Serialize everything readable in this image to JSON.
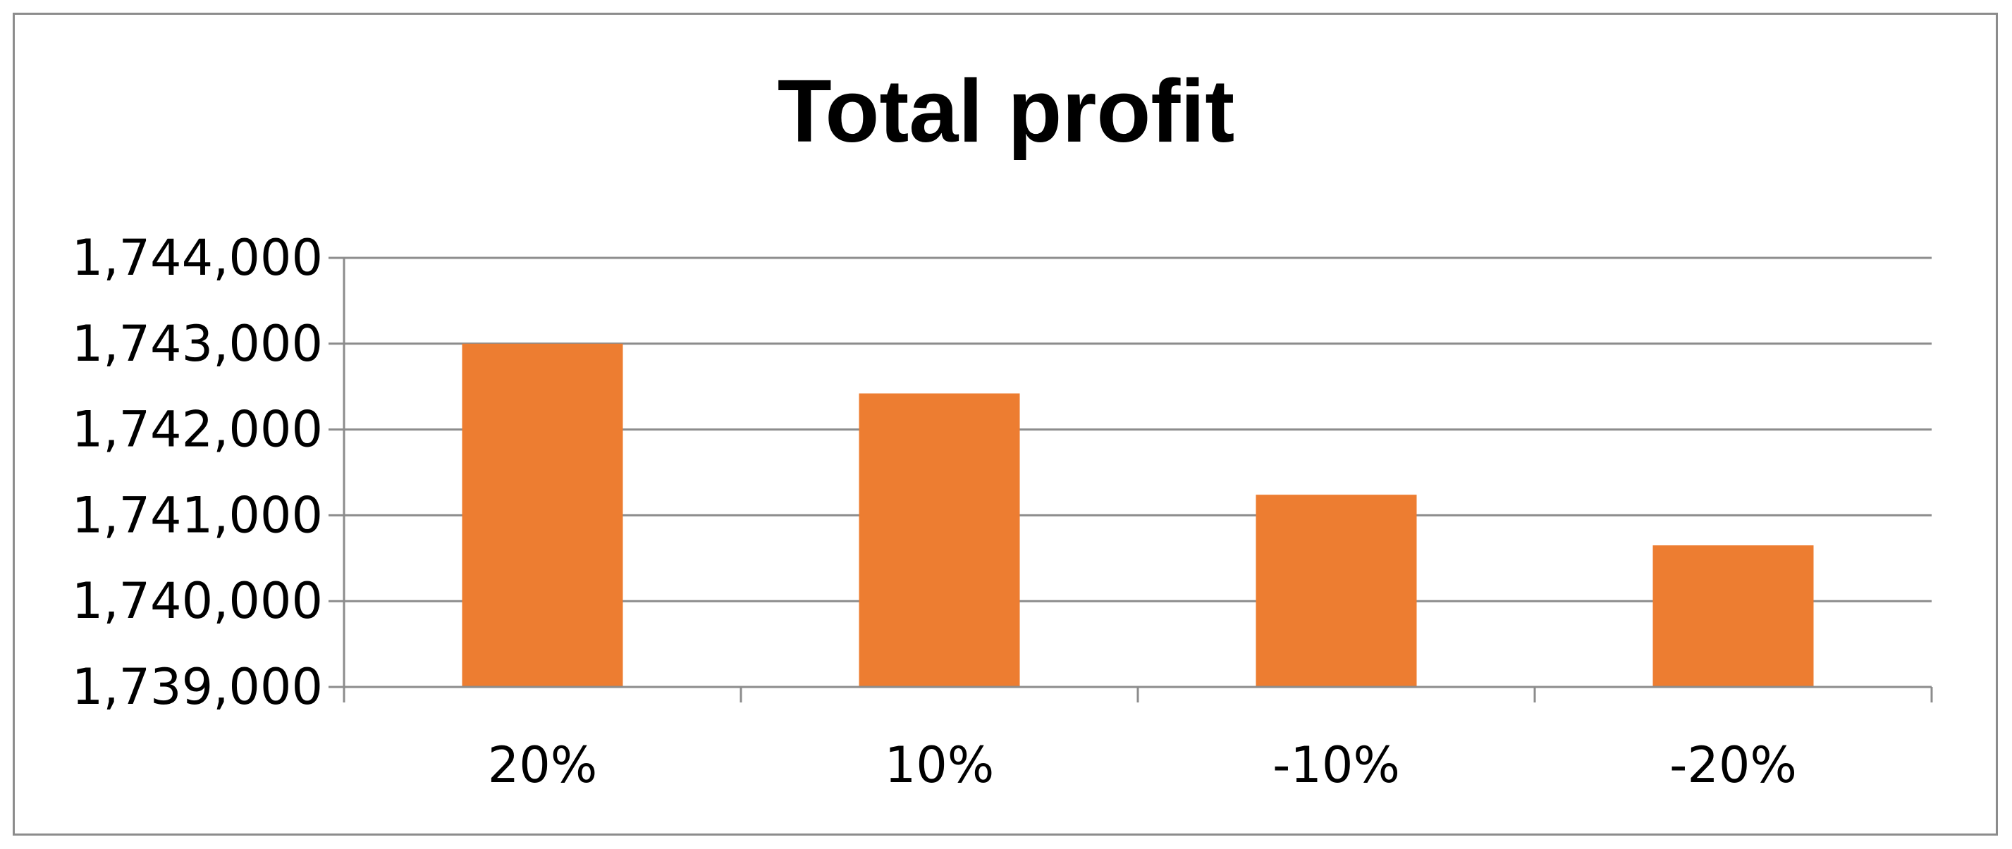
{
  "chart_data": {
    "type": "bar",
    "title": "Total profit",
    "categories": [
      "20%",
      "10%",
      "-10%",
      "-20%"
    ],
    "values": [
      1743000,
      1742420,
      1741240,
      1740650
    ],
    "ylim": [
      1739000,
      1744000
    ],
    "yticks": [
      1739000,
      1740000,
      1741000,
      1742000,
      1743000,
      1744000
    ],
    "ytick_labels": [
      "1,739,000",
      "1,740,000",
      "1,741,000",
      "1,742,000",
      "1,743,000",
      "1,744,000"
    ],
    "xlabel": "",
    "ylabel": "",
    "grid": true,
    "legend": "none",
    "colors": {
      "bar": "#ED7D31",
      "grid": "#8c8c8c",
      "axis": "#8c8c8c",
      "text": "#000000"
    }
  }
}
